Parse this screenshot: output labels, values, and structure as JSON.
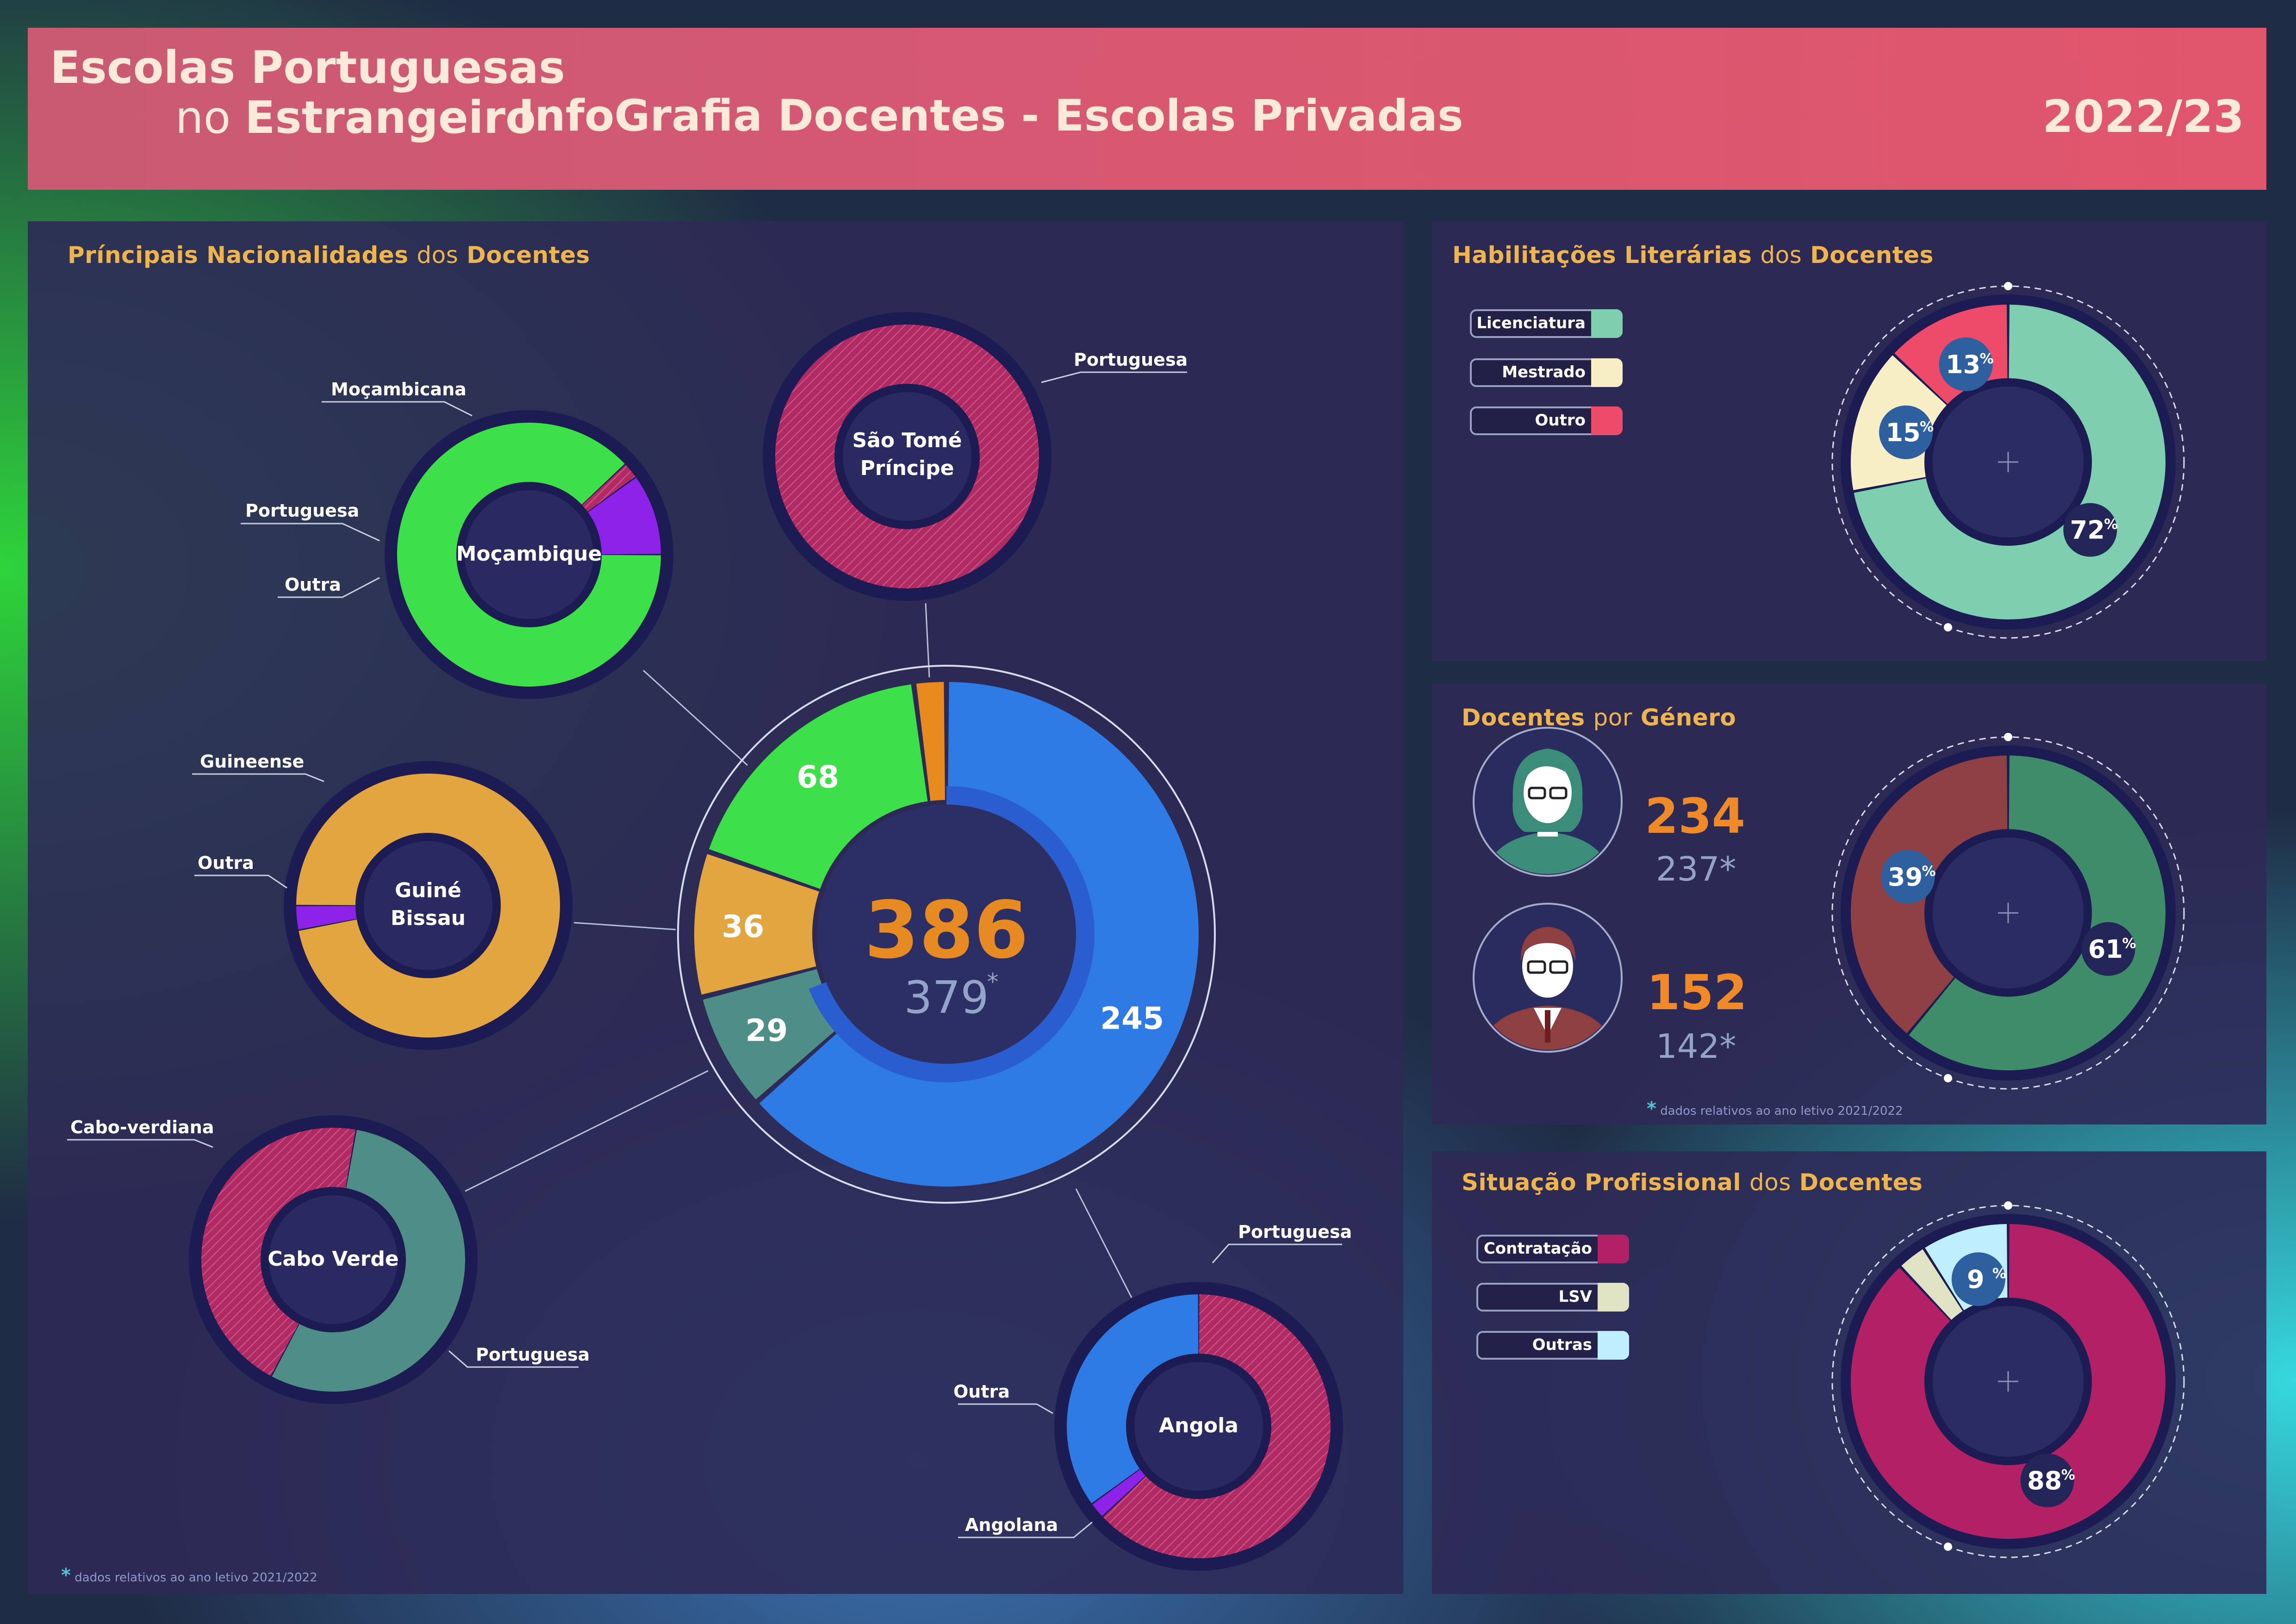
{
  "header": {
    "logo_line1": "Escolas Portuguesas",
    "logo_line2_prefix": "no",
    "logo_line2_bold": "Estrangeiro",
    "title": "InfoGrafia Docentes - Escolas Privadas",
    "year": "2022/23"
  },
  "nationalities": {
    "title_a": "Príncipais Nacionalidades",
    "title_b": "dos",
    "title_c": "Docentes",
    "total": "386",
    "previous_total": "379",
    "asterisk": "*",
    "footnote": "dados relativos ao ano letivo 2021/2022",
    "sub_labels": {
      "mocambique": "Moçambique",
      "stp_line1": "São Tomé",
      "stp_line2": "Príncipe",
      "guine_line1": "Guiné",
      "guine_line2": "Bissau",
      "caboverde": "Cabo Verde",
      "angola": "Angola"
    },
    "callouts": {
      "moc_mocambicana": "Moçambicana",
      "moc_portuguesa": "Portuguesa",
      "moc_outra": "Outra",
      "stp_portuguesa": "Portuguesa",
      "gb_guineense": "Guineense",
      "gb_outra": "Outra",
      "cv_caboverdiana": "Cabo-verdiana",
      "cv_portuguesa": "Portuguesa",
      "ang_portuguesa": "Portuguesa",
      "ang_outra": "Outra",
      "ang_angolana": "Angolana"
    }
  },
  "habilitacoes": {
    "title_a": "Habilitações Literárias",
    "title_b": "dos",
    "title_c": "Docentes",
    "legend": [
      "Licenciatura",
      "Mestrado",
      "Outro"
    ]
  },
  "genero": {
    "title_a": "Docentes",
    "title_b": "por",
    "title_c": "Género",
    "female_value": "234",
    "female_prev": "237*",
    "male_value": "152",
    "male_prev": "142*",
    "footnote": "dados relativos ao ano letivo 2021/2022"
  },
  "situacao": {
    "title_a": "Situação Profissional",
    "title_b": "dos",
    "title_c": "Docentes",
    "legend": [
      "Contratação",
      "LSV",
      "Outras"
    ]
  },
  "chart_data": [
    {
      "type": "pie",
      "title": "Príncipais Nacionalidades dos Docentes",
      "categories": [
        "Angola",
        "Cabo Verde",
        "Guiné Bissau",
        "Moçambique",
        "São Tomé Príncipe"
      ],
      "values": [
        245,
        29,
        36,
        68,
        8
      ],
      "value_labels": [
        "245",
        "29",
        "36",
        "68",
        ""
      ],
      "colors": [
        "#2f7be6",
        "#4e8e86",
        "#e3a53f",
        "#3de048",
        "#e98a1f"
      ],
      "total": 386,
      "previous_total": 379
    },
    {
      "type": "pie",
      "title": "Moçambique",
      "categories": [
        "Moçambicana",
        "Portuguesa",
        "Outra"
      ],
      "values": [
        88,
        2,
        10
      ],
      "colors": [
        "#3de048",
        "#b02a63",
        "#8d22e8"
      ]
    },
    {
      "type": "pie",
      "title": "São Tomé Príncipe",
      "categories": [
        "Portuguesa"
      ],
      "values": [
        100
      ],
      "colors": [
        "#b02a63"
      ]
    },
    {
      "type": "pie",
      "title": "Guiné Bissau",
      "categories": [
        "Guineense",
        "Outra"
      ],
      "values": [
        97,
        3
      ],
      "colors": [
        "#e3a53f",
        "#8d22e8"
      ]
    },
    {
      "type": "pie",
      "title": "Cabo Verde",
      "categories": [
        "Cabo-verdiana",
        "Portuguesa"
      ],
      "values": [
        55,
        45
      ],
      "colors": [
        "#4e8e86",
        "#b02a63"
      ]
    },
    {
      "type": "pie",
      "title": "Angola",
      "categories": [
        "Portuguesa",
        "Outra",
        "Angolana"
      ],
      "values": [
        63,
        2,
        35
      ],
      "colors": [
        "#b02a63",
        "#8d22e8",
        "#2f7be6"
      ]
    },
    {
      "type": "pie",
      "title": "Habilitações Literárias dos Docentes",
      "categories": [
        "Licenciatura",
        "Mestrado",
        "Outro"
      ],
      "values": [
        72,
        15,
        13
      ],
      "colors": [
        "#7ecfb0",
        "#f7eec6",
        "#ee4a6a"
      ]
    },
    {
      "type": "pie",
      "title": "Docentes por Género",
      "categories": [
        "Feminino",
        "Masculino"
      ],
      "values": [
        61,
        39
      ],
      "colors": [
        "#3e8c6a",
        "#8e4045"
      ]
    },
    {
      "type": "pie",
      "title": "Situação Profissional dos Docentes",
      "categories": [
        "Contratação",
        "LSV",
        "Outras"
      ],
      "values": [
        88,
        3,
        9
      ],
      "colors": [
        "#b22066",
        "#dfe3c4",
        "#bfeeff"
      ]
    }
  ]
}
